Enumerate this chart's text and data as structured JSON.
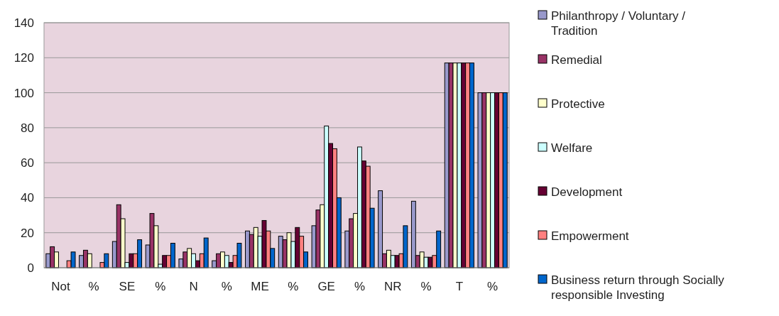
{
  "chart_data": {
    "type": "bar",
    "categories": [
      "Not",
      "%",
      "SE",
      "%",
      "N",
      "%",
      "ME",
      "%",
      "GE",
      "%",
      "NR",
      "%",
      "T",
      "%"
    ],
    "ylim": [
      0,
      140
    ],
    "yticks": [
      0,
      20,
      40,
      60,
      80,
      100,
      120,
      140
    ],
    "grid": "y",
    "legend": "right",
    "series": [
      {
        "name": "Philanthropy / Voluntary / Tradition",
        "color": "#9999cc",
        "values": [
          8,
          7,
          15,
          13,
          5,
          4,
          21,
          18,
          24,
          21,
          44,
          38,
          117,
          100
        ]
      },
      {
        "name": "Remedial",
        "color": "#993366",
        "values": [
          12,
          10,
          36,
          31,
          9,
          8,
          19,
          16,
          33,
          28,
          8,
          7,
          117,
          100
        ]
      },
      {
        "name": "Protective",
        "color": "#ffffcc",
        "values": [
          9,
          8,
          28,
          24,
          11,
          9,
          23,
          20,
          36,
          31,
          10,
          9,
          117,
          100
        ]
      },
      {
        "name": "Welfare",
        "color": "#ccffff",
        "values": [
          0,
          0,
          3,
          2,
          8,
          7,
          18,
          15,
          81,
          69,
          7,
          6,
          117,
          100
        ]
      },
      {
        "name": "Development",
        "color": "#660033",
        "values": [
          0,
          0,
          8,
          7,
          4,
          3,
          27,
          23,
          71,
          61,
          7,
          6,
          117,
          100
        ]
      },
      {
        "name": "Empowerment",
        "color": "#ff8080",
        "values": [
          4,
          3,
          8,
          7,
          8,
          7,
          21,
          18,
          68,
          58,
          8,
          7,
          117,
          100
        ]
      },
      {
        "name": "Business return through Socially responsible Investing",
        "color": "#0066cc",
        "values": [
          9,
          8,
          16,
          14,
          17,
          14,
          11,
          9,
          40,
          34,
          24,
          21,
          117,
          100
        ]
      }
    ]
  }
}
